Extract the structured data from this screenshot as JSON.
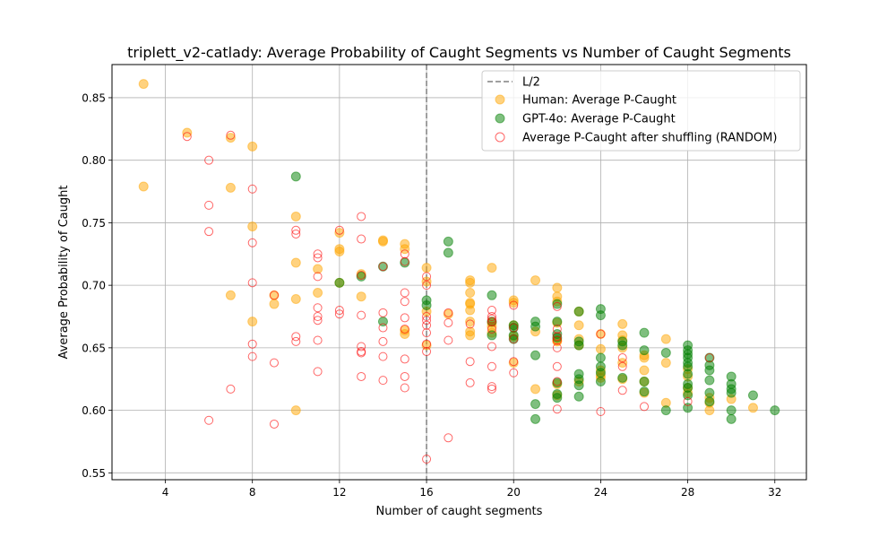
{
  "chart_data": {
    "type": "scatter",
    "title": "triplett_v2-catlady: Average Probability of Caught Segments vs Number of Caught Segments",
    "xlabel": "Number of caught segments",
    "ylabel": "Average Probability of Caught",
    "xlim": [
      1.55,
      33.45
    ],
    "ylim": [
      0.5445,
      0.8765
    ],
    "xticks": [
      4,
      8,
      12,
      16,
      20,
      24,
      28,
      32
    ],
    "yticks": [
      0.55,
      0.6,
      0.65,
      0.7,
      0.75,
      0.8,
      0.85
    ],
    "grid": true,
    "legend_position": "top-right",
    "vline": {
      "x": 16,
      "label": "L/2",
      "color": "#808080"
    },
    "series": [
      {
        "name": "Human: Average P-Caught",
        "marker": "filled-circle",
        "color": "#ffa500",
        "points": [
          [
            3,
            0.861
          ],
          [
            3,
            0.779
          ],
          [
            5,
            0.822
          ],
          [
            7,
            0.818
          ],
          [
            7,
            0.778
          ],
          [
            7,
            0.692
          ],
          [
            8,
            0.811
          ],
          [
            8,
            0.747
          ],
          [
            8,
            0.671
          ],
          [
            9,
            0.692
          ],
          [
            9,
            0.685
          ],
          [
            10,
            0.755
          ],
          [
            10,
            0.718
          ],
          [
            10,
            0.689
          ],
          [
            10,
            0.6
          ],
          [
            11,
            0.713
          ],
          [
            11,
            0.694
          ],
          [
            12,
            0.742
          ],
          [
            12,
            0.729
          ],
          [
            12,
            0.727
          ],
          [
            12,
            0.702
          ],
          [
            13,
            0.709
          ],
          [
            13,
            0.691
          ],
          [
            14,
            0.736
          ],
          [
            14,
            0.735
          ],
          [
            15,
            0.733
          ],
          [
            15,
            0.729
          ],
          [
            15,
            0.664
          ],
          [
            15,
            0.661
          ],
          [
            16,
            0.714
          ],
          [
            16,
            0.703
          ],
          [
            16,
            0.679
          ],
          [
            16,
            0.652
          ],
          [
            17,
            0.677
          ],
          [
            18,
            0.704
          ],
          [
            18,
            0.702
          ],
          [
            18,
            0.694
          ],
          [
            18,
            0.686
          ],
          [
            18,
            0.685
          ],
          [
            18,
            0.68
          ],
          [
            18,
            0.671
          ],
          [
            18,
            0.663
          ],
          [
            18,
            0.66
          ],
          [
            19,
            0.714
          ],
          [
            19,
            0.67
          ],
          [
            19,
            0.667
          ],
          [
            19,
            0.662
          ],
          [
            20,
            0.688
          ],
          [
            20,
            0.686
          ],
          [
            20,
            0.668
          ],
          [
            20,
            0.659
          ],
          [
            20,
            0.638
          ],
          [
            21,
            0.704
          ],
          [
            21,
            0.663
          ],
          [
            21,
            0.617
          ],
          [
            22,
            0.698
          ],
          [
            22,
            0.691
          ],
          [
            22,
            0.687
          ],
          [
            22,
            0.67
          ],
          [
            22,
            0.656
          ],
          [
            22,
            0.655
          ],
          [
            22,
            0.621
          ],
          [
            22,
            0.612
          ],
          [
            23,
            0.679
          ],
          [
            23,
            0.668
          ],
          [
            23,
            0.657
          ],
          [
            23,
            0.652
          ],
          [
            23,
            0.623
          ],
          [
            24,
            0.661
          ],
          [
            24,
            0.649
          ],
          [
            24,
            0.632
          ],
          [
            24,
            0.628
          ],
          [
            24,
            0.626
          ],
          [
            25,
            0.669
          ],
          [
            25,
            0.66
          ],
          [
            25,
            0.656
          ],
          [
            25,
            0.65
          ],
          [
            25,
            0.638
          ],
          [
            25,
            0.625
          ],
          [
            26,
            0.644
          ],
          [
            26,
            0.642
          ],
          [
            26,
            0.632
          ],
          [
            26,
            0.623
          ],
          [
            26,
            0.614
          ],
          [
            27,
            0.657
          ],
          [
            27,
            0.638
          ],
          [
            27,
            0.606
          ],
          [
            28,
            0.633
          ],
          [
            28,
            0.627
          ],
          [
            28,
            0.618
          ],
          [
            28,
            0.614
          ],
          [
            29,
            0.61
          ],
          [
            29,
            0.606
          ],
          [
            29,
            0.6
          ],
          [
            30,
            0.609
          ],
          [
            31,
            0.602
          ]
        ]
      },
      {
        "name": "GPT-4o: Average P-Caught",
        "marker": "filled-circle",
        "color": "#008000",
        "points": [
          [
            10,
            0.787
          ],
          [
            12,
            0.702
          ],
          [
            13,
            0.707
          ],
          [
            14,
            0.715
          ],
          [
            14,
            0.671
          ],
          [
            15,
            0.718
          ],
          [
            16,
            0.688
          ],
          [
            16,
            0.684
          ],
          [
            17,
            0.735
          ],
          [
            17,
            0.726
          ],
          [
            19,
            0.692
          ],
          [
            19,
            0.671
          ],
          [
            19,
            0.66
          ],
          [
            20,
            0.668
          ],
          [
            20,
            0.666
          ],
          [
            20,
            0.66
          ],
          [
            20,
            0.657
          ],
          [
            21,
            0.671
          ],
          [
            21,
            0.667
          ],
          [
            21,
            0.644
          ],
          [
            21,
            0.605
          ],
          [
            21,
            0.593
          ],
          [
            22,
            0.685
          ],
          [
            22,
            0.671
          ],
          [
            22,
            0.661
          ],
          [
            22,
            0.658
          ],
          [
            22,
            0.622
          ],
          [
            22,
            0.613
          ],
          [
            22,
            0.61
          ],
          [
            23,
            0.679
          ],
          [
            23,
            0.655
          ],
          [
            23,
            0.652
          ],
          [
            23,
            0.629
          ],
          [
            23,
            0.625
          ],
          [
            23,
            0.62
          ],
          [
            23,
            0.611
          ],
          [
            24,
            0.681
          ],
          [
            24,
            0.676
          ],
          [
            24,
            0.642
          ],
          [
            24,
            0.635
          ],
          [
            24,
            0.63
          ],
          [
            24,
            0.623
          ],
          [
            25,
            0.655
          ],
          [
            25,
            0.652
          ],
          [
            25,
            0.626
          ],
          [
            26,
            0.662
          ],
          [
            26,
            0.648
          ],
          [
            26,
            0.623
          ],
          [
            26,
            0.615
          ],
          [
            27,
            0.646
          ],
          [
            27,
            0.6
          ],
          [
            28,
            0.652
          ],
          [
            28,
            0.648
          ],
          [
            28,
            0.645
          ],
          [
            28,
            0.642
          ],
          [
            28,
            0.638
          ],
          [
            28,
            0.635
          ],
          [
            28,
            0.629
          ],
          [
            28,
            0.621
          ],
          [
            28,
            0.618
          ],
          [
            28,
            0.612
          ],
          [
            28,
            0.602
          ],
          [
            29,
            0.642
          ],
          [
            29,
            0.636
          ],
          [
            29,
            0.632
          ],
          [
            29,
            0.624
          ],
          [
            29,
            0.614
          ],
          [
            29,
            0.607
          ],
          [
            30,
            0.627
          ],
          [
            30,
            0.621
          ],
          [
            30,
            0.617
          ],
          [
            30,
            0.614
          ],
          [
            30,
            0.6
          ],
          [
            30,
            0.593
          ],
          [
            31,
            0.612
          ],
          [
            32,
            0.6
          ]
        ]
      },
      {
        "name": "Average P-Caught after shuffling (RANDOM)",
        "marker": "hollow-circle",
        "color": "#ff0000",
        "points": [
          [
            5,
            0.819
          ],
          [
            6,
            0.8
          ],
          [
            6,
            0.764
          ],
          [
            6,
            0.743
          ],
          [
            6,
            0.592
          ],
          [
            7,
            0.82
          ],
          [
            7,
            0.617
          ],
          [
            8,
            0.777
          ],
          [
            8,
            0.734
          ],
          [
            8,
            0.702
          ],
          [
            8,
            0.653
          ],
          [
            8,
            0.643
          ],
          [
            9,
            0.692
          ],
          [
            9,
            0.638
          ],
          [
            9,
            0.589
          ],
          [
            10,
            0.744
          ],
          [
            10,
            0.741
          ],
          [
            10,
            0.659
          ],
          [
            10,
            0.655
          ],
          [
            11,
            0.725
          ],
          [
            11,
            0.722
          ],
          [
            11,
            0.707
          ],
          [
            11,
            0.682
          ],
          [
            11,
            0.675
          ],
          [
            11,
            0.672
          ],
          [
            11,
            0.656
          ],
          [
            11,
            0.631
          ],
          [
            12,
            0.744
          ],
          [
            12,
            0.68
          ],
          [
            12,
            0.677
          ],
          [
            13,
            0.755
          ],
          [
            13,
            0.737
          ],
          [
            13,
            0.708
          ],
          [
            13,
            0.676
          ],
          [
            13,
            0.651
          ],
          [
            13,
            0.647
          ],
          [
            13,
            0.646
          ],
          [
            13,
            0.627
          ],
          [
            14,
            0.715
          ],
          [
            14,
            0.678
          ],
          [
            14,
            0.666
          ],
          [
            14,
            0.655
          ],
          [
            14,
            0.643
          ],
          [
            14,
            0.624
          ],
          [
            15,
            0.725
          ],
          [
            15,
            0.719
          ],
          [
            15,
            0.694
          ],
          [
            15,
            0.687
          ],
          [
            15,
            0.674
          ],
          [
            15,
            0.665
          ],
          [
            15,
            0.641
          ],
          [
            15,
            0.627
          ],
          [
            15,
            0.618
          ],
          [
            16,
            0.707
          ],
          [
            16,
            0.7
          ],
          [
            16,
            0.675
          ],
          [
            16,
            0.672
          ],
          [
            16,
            0.668
          ],
          [
            16,
            0.662
          ],
          [
            16,
            0.653
          ],
          [
            16,
            0.647
          ],
          [
            16,
            0.561
          ],
          [
            17,
            0.678
          ],
          [
            17,
            0.67
          ],
          [
            17,
            0.656
          ],
          [
            17,
            0.578
          ],
          [
            18,
            0.669
          ],
          [
            18,
            0.639
          ],
          [
            18,
            0.622
          ],
          [
            19,
            0.68
          ],
          [
            19,
            0.675
          ],
          [
            19,
            0.673
          ],
          [
            19,
            0.671
          ],
          [
            19,
            0.665
          ],
          [
            19,
            0.651
          ],
          [
            19,
            0.635
          ],
          [
            19,
            0.619
          ],
          [
            19,
            0.617
          ],
          [
            20,
            0.684
          ],
          [
            20,
            0.666
          ],
          [
            20,
            0.657
          ],
          [
            20,
            0.639
          ],
          [
            20,
            0.63
          ],
          [
            22,
            0.683
          ],
          [
            22,
            0.665
          ],
          [
            22,
            0.659
          ],
          [
            22,
            0.656
          ],
          [
            22,
            0.65
          ],
          [
            22,
            0.635
          ],
          [
            22,
            0.623
          ],
          [
            22,
            0.601
          ],
          [
            24,
            0.661
          ],
          [
            24,
            0.599
          ],
          [
            25,
            0.642
          ],
          [
            25,
            0.635
          ],
          [
            25,
            0.616
          ],
          [
            26,
            0.603
          ],
          [
            28,
            0.607
          ],
          [
            29,
            0.642
          ]
        ]
      }
    ]
  }
}
